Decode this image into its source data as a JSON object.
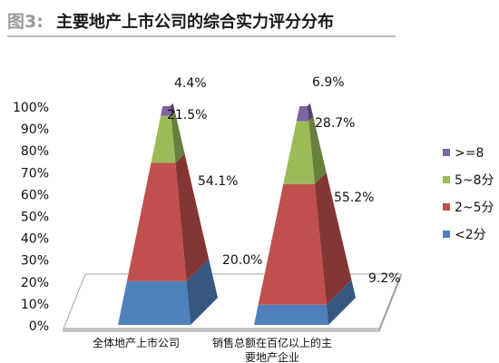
{
  "figure_label": "图3:",
  "figure_title": "主要地产上市公司的综合实力评分分布",
  "colors": {
    "title_label": "#9a9a9a",
    "title_text": "#1a1a1a",
    "rule": "#777777",
    "lt2": "#4f81bd",
    "s2to5": "#c0504d",
    "s5to8": "#9bbb59",
    "gte8": "#8064a2"
  },
  "chart_data": {
    "type": "bar",
    "subtype": "stacked-100-pyramid-3d",
    "title": "主要地产上市公司的综合实力评分分布",
    "categories": [
      "全体地产上市公司",
      "销售总额在百亿以上的主要地产企业"
    ],
    "category_label_lines": [
      [
        "全体地产上市公司"
      ],
      [
        "销售总额在百亿以上的主",
        "要地产企业"
      ]
    ],
    "series": [
      {
        "name": "<2分",
        "values": [
          20.0,
          9.2
        ],
        "labels": [
          "20.0%",
          "9.2%"
        ]
      },
      {
        "name": "2~5分",
        "values": [
          54.1,
          55.2
        ],
        "labels": [
          "54.1%",
          "55.2%"
        ]
      },
      {
        "name": "5~8分",
        "values": [
          21.5,
          28.7
        ],
        "labels": [
          "21.5%",
          "28.7%"
        ]
      },
      {
        "name": ">=8",
        "values": [
          4.4,
          6.9
        ],
        "labels": [
          "4.4%",
          "6.9%"
        ]
      }
    ],
    "legend_order": [
      ">=8",
      "5~8分",
      "2~5分",
      "<2分"
    ],
    "ylim": [
      0,
      100
    ],
    "yticks": [
      "0%",
      "10%",
      "20%",
      "30%",
      "40%",
      "50%",
      "60%",
      "70%",
      "80%",
      "90%",
      "100%"
    ],
    "legend_position": "right",
    "grid": false
  }
}
